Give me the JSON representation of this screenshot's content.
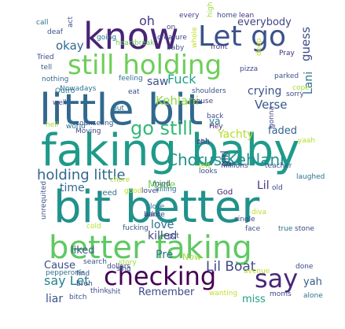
{
  "word_cloud": {
    "words": [
      {
        "text": "know",
        "color": "#482576"
      },
      {
        "text": "Let go",
        "color": "#3b528b"
      },
      {
        "text": "still holding",
        "color": "#6ece58"
      },
      {
        "text": "little bit",
        "color": "#31688e"
      },
      {
        "text": "faking baby",
        "color": "#1f9a8a"
      },
      {
        "text": "bit better",
        "color": "#21918c"
      },
      {
        "text": "better faking",
        "color": "#5ec962"
      },
      {
        "text": "checking",
        "color": "#440154"
      },
      {
        "text": "say",
        "color": "#482878"
      },
      {
        "text": "go still",
        "color": "#35b779"
      },
      {
        "text": "holding little",
        "color": "#31688e"
      },
      {
        "text": "Chorus Kehlani",
        "color": "#21918c"
      },
      {
        "text": "Lil Boat",
        "color": "#3e4989"
      },
      {
        "text": "say Let",
        "color": "#26828e"
      },
      {
        "text": "oh",
        "color": "#443983"
      },
      {
        "text": "okay",
        "color": "#31688e"
      },
      {
        "text": "everybody",
        "color": "#414487"
      },
      {
        "text": "crying",
        "color": "#3b528b"
      },
      {
        "text": "guess",
        "color": "#3e4989"
      },
      {
        "text": "Lani",
        "color": "#2c728e"
      },
      {
        "text": "Verse",
        "color": "#38588c"
      },
      {
        "text": "faded",
        "color": "#33638d"
      },
      {
        "text": "Fuck",
        "color": "#1fa187"
      },
      {
        "text": "Kehlani",
        "color": "#8fd744"
      },
      {
        "text": "saw",
        "color": "#3b528b"
      },
      {
        "text": "Yachty",
        "color": "#b5de2b"
      },
      {
        "text": "ya",
        "color": "#2a788e"
      },
      {
        "text": "time",
        "color": "#31688e"
      },
      {
        "text": "Made",
        "color": "#73d056"
      },
      {
        "text": "love",
        "color": "#2e6f8e"
      },
      {
        "text": "killed",
        "color": "#3e4a89"
      },
      {
        "text": "liked",
        "color": "#3b528b"
      },
      {
        "text": "Pre",
        "color": "#2d708e"
      },
      {
        "text": "Cause",
        "color": "#3e4989"
      },
      {
        "text": "liar",
        "color": "#3b528b"
      },
      {
        "text": "Remember",
        "color": "#3e4989"
      },
      {
        "text": "miss",
        "color": "#1f9e89"
      },
      {
        "text": "yah",
        "color": "#375a8c"
      },
      {
        "text": "Lil",
        "color": "#46337e"
      },
      {
        "text": "girl",
        "color": "#3f4788"
      },
      {
        "text": "Now",
        "color": "#a0da39"
      },
      {
        "text": "need",
        "color": "#2c728e"
      },
      {
        "text": "God",
        "color": "#482071"
      },
      {
        "text": "diva",
        "color": "#b8de29"
      },
      {
        "text": "call",
        "color": "#2c728e"
      },
      {
        "text": "act",
        "color": "#3b528b"
      },
      {
        "text": "every",
        "color": "#424086"
      },
      {
        "text": "high",
        "color": "#9bd93c"
      },
      {
        "text": "home",
        "color": "#3e4989"
      },
      {
        "text": "lean",
        "color": "#472d7b"
      },
      {
        "text": "deaf",
        "color": "#3b528b"
      },
      {
        "text": "going",
        "color": "#2c728e"
      },
      {
        "text": "heartbreak",
        "color": "#6ece58"
      },
      {
        "text": "creature",
        "color": "#3f4788"
      },
      {
        "text": "whole",
        "color": "#c0df25"
      },
      {
        "text": "on",
        "color": "#3e4989"
      },
      {
        "text": "baby",
        "color": "#3b528b"
      },
      {
        "text": "front",
        "color": "#46337e"
      },
      {
        "text": "deep",
        "color": "#bddf26"
      },
      {
        "text": "Pray",
        "color": "#472d7b"
      },
      {
        "text": "Tried",
        "color": "#3f4788"
      },
      {
        "text": "tell",
        "color": "#365c8d"
      },
      {
        "text": "feeling",
        "color": "#2c728e"
      },
      {
        "text": "pizza",
        "color": "#3e4989"
      },
      {
        "text": "parked",
        "color": "#3b528b"
      },
      {
        "text": "nothing",
        "color": "#31688e"
      },
      {
        "text": "Nowadays",
        "color": "#2c728e"
      },
      {
        "text": "eat",
        "color": "#3e4989"
      },
      {
        "text": "cope",
        "color": "#a2da37"
      },
      {
        "text": "Outro",
        "color": "#2c728e"
      },
      {
        "text": "shoulders",
        "color": "#3b528b"
      },
      {
        "text": "sorry",
        "color": "#3e4989"
      },
      {
        "text": "house",
        "color": "#414487"
      },
      {
        "text": "well",
        "color": "#3e4989"
      },
      {
        "text": "put",
        "color": "#2c728e"
      },
      {
        "text": "back",
        "color": "#3b528b"
      },
      {
        "text": "Hey",
        "color": "#472d7b"
      },
      {
        "text": "gonna",
        "color": "#3f4788"
      },
      {
        "text": "ooh",
        "color": "#3e4989"
      },
      {
        "text": "hell",
        "color": "#a0da39"
      },
      {
        "text": "world",
        "color": "#2c728e"
      },
      {
        "text": "counseling",
        "color": "#3b528b"
      },
      {
        "text": "Moving",
        "color": "#3e4989"
      },
      {
        "text": "yaah",
        "color": "#b5de2b"
      },
      {
        "text": "ohh",
        "color": "#3e4989"
      },
      {
        "text": "left",
        "color": "#bddf26"
      },
      {
        "text": "looks",
        "color": "#3b528b"
      },
      {
        "text": "millions",
        "color": "#414487"
      },
      {
        "text": "teacher",
        "color": "#3b528b"
      },
      {
        "text": "laughed",
        "color": "#2c728e"
      },
      {
        "text": "chore",
        "color": "#a8db34"
      },
      {
        "text": "good",
        "color": "#c2df23"
      },
      {
        "text": "lover",
        "color": "#3e4989"
      },
      {
        "text": "mind",
        "color": "#3b528b"
      },
      {
        "text": "killing",
        "color": "#2c728e"
      },
      {
        "text": "old",
        "color": "#3e4989"
      },
      {
        "text": "unrequited",
        "color": "#3b528b"
      },
      {
        "text": "close",
        "color": "#2c728e"
      },
      {
        "text": "adore",
        "color": "#3e4989"
      },
      {
        "text": "hard",
        "color": "#3b528b"
      },
      {
        "text": "single",
        "color": "#3e4989"
      },
      {
        "text": "face",
        "color": "#3b528b"
      },
      {
        "text": "true",
        "color": "#2c728e"
      },
      {
        "text": "stone",
        "color": "#3e4989"
      },
      {
        "text": "cold",
        "color": "#b5de2b"
      },
      {
        "text": "fucking",
        "color": "#3b528b"
      },
      {
        "text": "got",
        "color": "#3e4989"
      },
      {
        "text": "story",
        "color": "#a0da39"
      },
      {
        "text": "search",
        "color": "#3b528b"
      },
      {
        "text": "dollars",
        "color": "#3e4989"
      },
      {
        "text": "sing",
        "color": "#3b528b"
      },
      {
        "text": "pepperonis",
        "color": "#2c728e"
      },
      {
        "text": "avenue",
        "color": "#bddf26"
      },
      {
        "text": "done",
        "color": "#3e4989"
      },
      {
        "text": "find",
        "color": "#3b528b"
      },
      {
        "text": "think",
        "color": "#3e4989"
      },
      {
        "text": "shit",
        "color": "#3b528b"
      },
      {
        "text": "wanting",
        "color": "#c0df25"
      },
      {
        "text": "moms",
        "color": "#3e4989"
      },
      {
        "text": "bitch",
        "color": "#3b528b"
      },
      {
        "text": "alone",
        "color": "#2c728e"
      },
      {
        "text": "bruh",
        "color": "#3e4989"
      }
    ]
  }
}
